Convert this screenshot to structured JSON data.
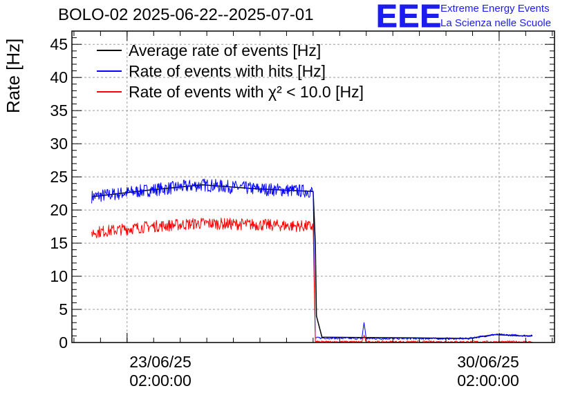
{
  "title": "BOLO-02 2025-06-22--2025-07-01",
  "logo": {
    "mark": "EEE",
    "line1": "Extreme Energy Events",
    "line2": "La Scienza nelle Scuole"
  },
  "colors": {
    "average": "#000000",
    "hits": "#0000ff",
    "chi2": "#ff0000",
    "grid": "#999999",
    "logo": "#1c1cf0"
  },
  "chart_data": {
    "type": "line",
    "title": "BOLO-02 2025-06-22--2025-07-01",
    "ylabel": "Rate [Hz]",
    "xlabel": "",
    "ylim": [
      0,
      47
    ],
    "yticks": [
      0,
      5,
      10,
      15,
      20,
      25,
      30,
      35,
      40,
      45
    ],
    "xlim": [
      "2025-06-22T01:05:00",
      "2025-07-01T03:00:00"
    ],
    "xticks": [
      {
        "x": "2025-06-23T02:00:00",
        "line1": "23/06/25",
        "line2": "02:00:00"
      },
      {
        "x": "2025-06-30T02:00:00",
        "line1": "30/06/25",
        "line2": "02:00:00"
      }
    ],
    "grid": true,
    "legend_position": "top-left",
    "legend": [
      {
        "text": "Average rate of events [Hz]",
        "color": "#000000"
      },
      {
        "text": "Rate of events with hits [Hz]",
        "color": "#0000ff"
      },
      {
        "text": "Rate of events with χ² < 10.0 [Hz]",
        "color": "#ff0000"
      }
    ],
    "series": [
      {
        "name": "Average rate of events [Hz]",
        "color": "#000000",
        "points": [
          [
            "2025-06-22T10:00:00",
            22.0
          ],
          [
            "2025-06-23T12:00:00",
            23.0
          ],
          [
            "2025-06-24T12:00:00",
            23.8
          ],
          [
            "2025-06-25T12:00:00",
            23.2
          ],
          [
            "2025-06-26T14:00:00",
            22.8
          ],
          [
            "2025-06-26T15:00:00",
            15.0
          ],
          [
            "2025-06-26T15:30:00",
            4.0
          ],
          [
            "2025-06-26T18:00:00",
            0.8
          ],
          [
            "2025-06-28T12:00:00",
            0.7
          ],
          [
            "2025-06-29T12:00:00",
            0.6
          ],
          [
            "2025-06-30T00:00:00",
            1.2
          ],
          [
            "2025-06-30T12:00:00",
            1.0
          ],
          [
            "2025-06-30T17:00:00",
            1.0
          ]
        ]
      },
      {
        "name": "Rate of events with hits [Hz]",
        "color": "#0000ff",
        "noise": 1.0,
        "points": [
          [
            "2025-06-22T10:00:00",
            22.0
          ],
          [
            "2025-06-23T12:00:00",
            23.0
          ],
          [
            "2025-06-24T12:00:00",
            23.8
          ],
          [
            "2025-06-25T12:00:00",
            23.2
          ],
          [
            "2025-06-26T14:00:00",
            22.8
          ],
          [
            "2025-06-26T15:00:00",
            0.7
          ],
          [
            "2025-06-27T12:00:00",
            0.6
          ],
          [
            "2025-06-27T13:00:00",
            3.0
          ],
          [
            "2025-06-27T14:00:00",
            0.6
          ],
          [
            "2025-06-29T12:00:00",
            0.6
          ],
          [
            "2025-06-30T00:00:00",
            1.2
          ],
          [
            "2025-06-30T17:00:00",
            1.0
          ]
        ]
      },
      {
        "name": "Rate of events with χ² < 10.0 [Hz]",
        "color": "#ff0000",
        "noise": 0.9,
        "points": [
          [
            "2025-06-22T10:00:00",
            16.6
          ],
          [
            "2025-06-23T12:00:00",
            17.5
          ],
          [
            "2025-06-24T12:00:00",
            18.0
          ],
          [
            "2025-06-25T12:00:00",
            17.8
          ],
          [
            "2025-06-26T14:00:00",
            17.5
          ],
          [
            "2025-06-26T15:00:00",
            0.1
          ],
          [
            "2025-06-27T12:00:00",
            0.1
          ],
          [
            "2025-06-27T13:00:00",
            1.0
          ],
          [
            "2025-06-27T14:00:00",
            0.1
          ],
          [
            "2025-06-30T17:00:00",
            0.1
          ]
        ]
      }
    ]
  }
}
